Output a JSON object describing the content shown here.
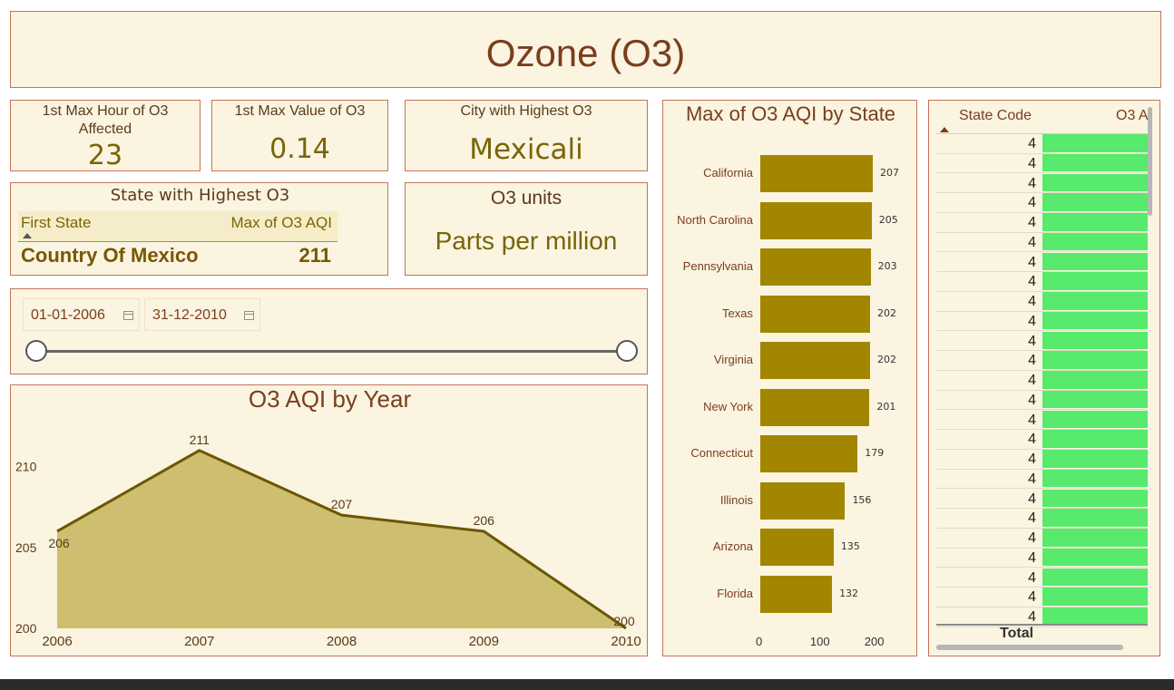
{
  "page_title": "Ozone (O3)",
  "cards": {
    "max_hour": {
      "label": "1st Max Hour of O3 Affected",
      "value": "23"
    },
    "max_value": {
      "label": "1st Max Value of O3",
      "value": "0.14"
    },
    "city": {
      "label": "City with Highest O3",
      "value": "Mexicali"
    },
    "units": {
      "label": "O3 units",
      "value": "Parts per million"
    }
  },
  "state_highest": {
    "title": "State with Highest O3",
    "col1": "First State",
    "col2": "Max of O3 AQI",
    "state": "Country Of Mexico",
    "aqi": "211"
  },
  "date_filter": {
    "start": "01-01-2006",
    "end": "31-12-2010",
    "icon": "calendar-icon"
  },
  "table": {
    "col1": "State Code",
    "col2": "O3 A",
    "values": [
      "4",
      "4",
      "4",
      "4",
      "4",
      "4",
      "4",
      "4",
      "4",
      "4",
      "4",
      "4",
      "4",
      "4",
      "4",
      "4",
      "4",
      "4",
      "4",
      "4",
      "4",
      "4",
      "4",
      "4",
      "4"
    ],
    "total_label": "Total",
    "bar_color": "#57ea6c"
  },
  "colors": {
    "bar": "#a38600",
    "area_fill": "#cdbf6f",
    "area_line": "#6b5600",
    "border": "#c4735a",
    "panel_bg": "#faf4e1"
  },
  "chart_data": [
    {
      "type": "area",
      "title": "O3 AQI by Year",
      "x": [
        "2006",
        "2007",
        "2008",
        "2009",
        "2010"
      ],
      "values": [
        206,
        211,
        207,
        206,
        200
      ],
      "data_labels": [
        "206",
        "211",
        "207",
        "206",
        "200"
      ],
      "y_ticks": [
        "200",
        "205",
        "210"
      ],
      "ylim": [
        200,
        212.5
      ]
    },
    {
      "type": "bar",
      "orientation": "horizontal",
      "title": "Max of O3 AQI by State",
      "categories": [
        "California",
        "North Carolina",
        "Pennsylvania",
        "Texas",
        "Virginia",
        "New York",
        "Connecticut",
        "Illinois",
        "Arizona",
        "Florida"
      ],
      "values": [
        207,
        205,
        203,
        202,
        202,
        201,
        179,
        156,
        135,
        132
      ],
      "data_labels": [
        "207",
        "205",
        "203",
        "202",
        "202",
        "201",
        "179",
        "156",
        "135",
        "132"
      ],
      "x_ticks": [
        "0",
        "100",
        "200"
      ],
      "xlim": [
        0,
        207
      ]
    }
  ]
}
